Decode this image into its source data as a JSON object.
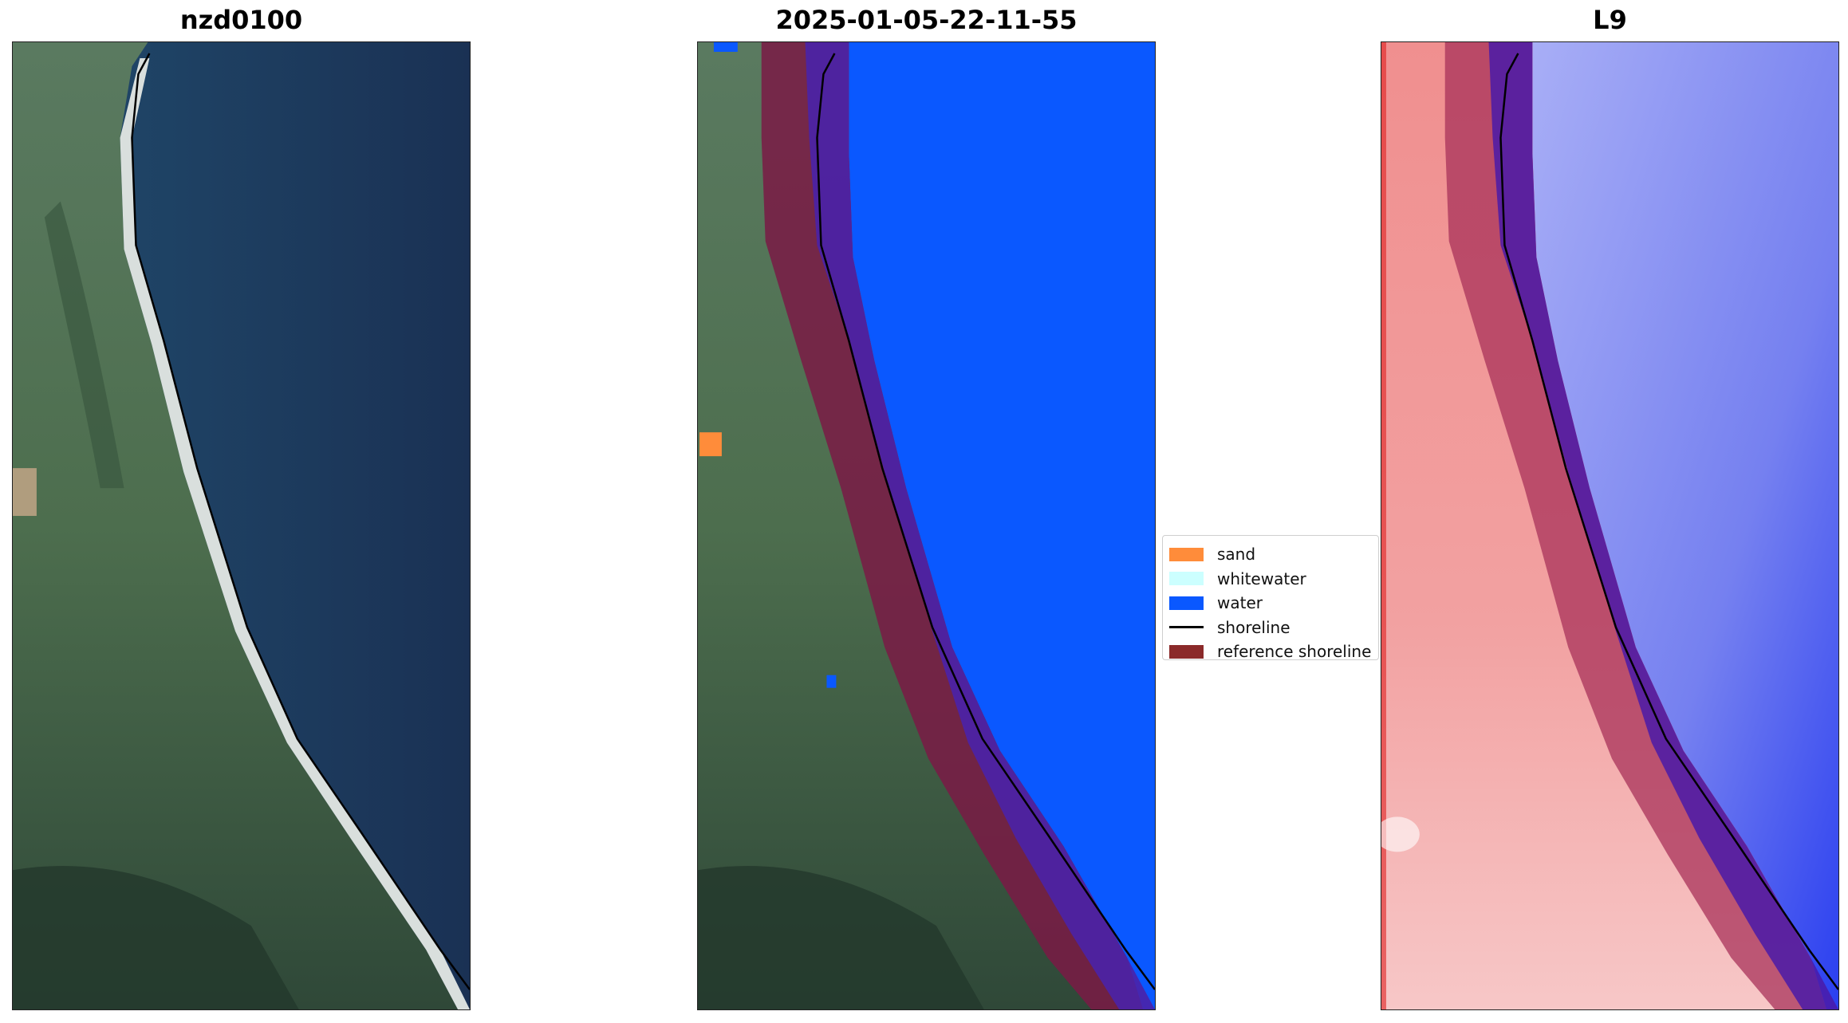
{
  "panels": [
    {
      "title": "nzd0100"
    },
    {
      "title": "2025-01-05-22-11-55"
    },
    {
      "title": "L9"
    }
  ],
  "legend": {
    "items": [
      {
        "label": "sand",
        "color": "#ff8c3a",
        "kind": "patch"
      },
      {
        "label": "whitewater",
        "color": "#ccffff",
        "kind": "patch"
      },
      {
        "label": "water",
        "color": "#0a58ff",
        "kind": "patch"
      },
      {
        "label": "shoreline",
        "color": "#000000",
        "kind": "line"
      },
      {
        "label": "reference shoreline",
        "color": "#8b2a2a",
        "kind": "patch"
      }
    ]
  },
  "colors": {
    "ocean_dark": "#1b3358",
    "ocean_near": "#2a5a7c",
    "land_green": "#4a6a4a",
    "land_dark": "#2f4a3a",
    "beach_sand": "#dfe4e2",
    "water_class": "#0a58ff",
    "sand_class": "#ff8c3a",
    "reference_band": "#7a1a45",
    "reference_band_water": "#4a22a8",
    "index_land": "#f29a9a",
    "index_water": "#6f7bf2"
  }
}
